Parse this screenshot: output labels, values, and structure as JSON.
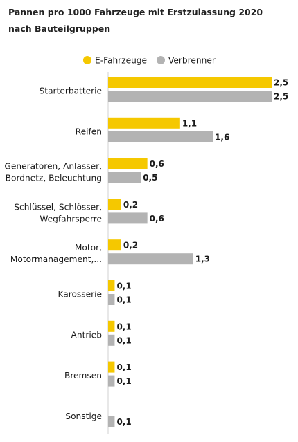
{
  "chart_data": {
    "type": "bar",
    "orientation": "horizontal",
    "title": "Pannen pro 1000 Fahrzeuge mit Erstzulassung 2020 nach Bauteilgruppen",
    "legend_position": "top",
    "xlim": [
      0,
      2.5
    ],
    "categories": [
      [
        "Starterbatterie"
      ],
      [
        "Reifen"
      ],
      [
        "Generatoren, Anlasser,",
        "Bordnetz, Beleuchtung"
      ],
      [
        "Schlüssel, Schlösser,",
        "Wegfahrsperre"
      ],
      [
        "Motor,",
        "Motormanagement,..."
      ],
      [
        "Karosserie"
      ],
      [
        "Antrieb"
      ],
      [
        "Bremsen"
      ],
      [
        "Sonstige"
      ]
    ],
    "series": [
      {
        "name": "E-Fahrzeuge",
        "color": "#f5c800",
        "values": [
          2.5,
          1.1,
          0.6,
          0.2,
          0.2,
          0.1,
          0.1,
          0.1,
          null
        ],
        "labels": [
          "2,5",
          "1,1",
          "0,6",
          "0,2",
          "0,2",
          "0,1",
          "0,1",
          "0,1",
          ""
        ]
      },
      {
        "name": "Verbrenner",
        "color": "#b3b3b3",
        "values": [
          2.5,
          1.6,
          0.5,
          0.6,
          1.3,
          0.1,
          0.1,
          0.1,
          0.1
        ],
        "labels": [
          "2,5",
          "1,6",
          "0,5",
          "0,6",
          "1,3",
          "0,1",
          "0,1",
          "0,1",
          "0,1"
        ]
      }
    ]
  }
}
